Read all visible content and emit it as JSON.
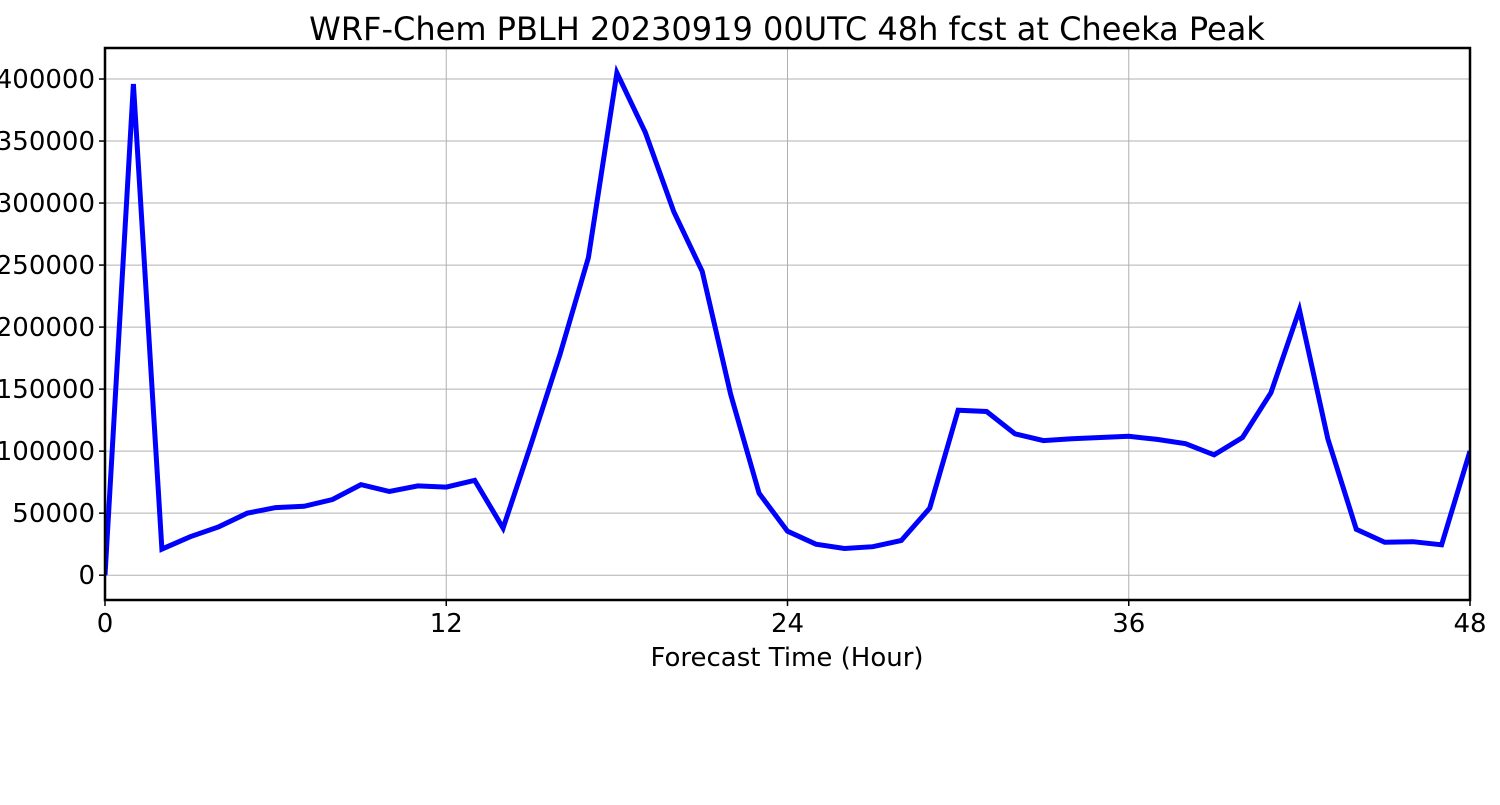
{
  "chart_data": {
    "type": "line",
    "title": "WRF-Chem PBLH  20230919 00UTC 48h fcst at Cheeka Peak",
    "xlabel": "Forecast Time (Hour)",
    "ylabel": "",
    "xlim": [
      0,
      48
    ],
    "ylim": [
      -20000,
      425000
    ],
    "x_ticks": [
      0,
      12,
      24,
      36,
      48
    ],
    "y_ticks": [
      0,
      50000,
      100000,
      150000,
      200000,
      250000,
      300000,
      350000,
      400000
    ],
    "grid": true,
    "series": [
      {
        "color": "#0000ff",
        "x": [
          0,
          1,
          2,
          3,
          4,
          5,
          6,
          7,
          8,
          9,
          10,
          11,
          12,
          13,
          14,
          15,
          16,
          17,
          18,
          19,
          20,
          21,
          22,
          23,
          24,
          25,
          26,
          27,
          28,
          29,
          30,
          31,
          32,
          33,
          34,
          35,
          36,
          37,
          38,
          39,
          40,
          41,
          42,
          43,
          44,
          45,
          46,
          47,
          48
        ],
        "values": [
          0,
          396000,
          21000,
          31000,
          39000,
          50000,
          54500,
          55500,
          61000,
          73000,
          67500,
          72000,
          71000,
          76500,
          38000,
          107000,
          178000,
          256000,
          405000,
          357000,
          293000,
          245000,
          146000,
          66000,
          35500,
          25000,
          21500,
          23000,
          28000,
          54000,
          133000,
          132000,
          114000,
          108500,
          110000,
          111000,
          112000,
          109500,
          106000,
          97000,
          111000,
          147000,
          214000,
          110000,
          37000,
          26500,
          27000,
          24500,
          100000
        ]
      }
    ]
  }
}
